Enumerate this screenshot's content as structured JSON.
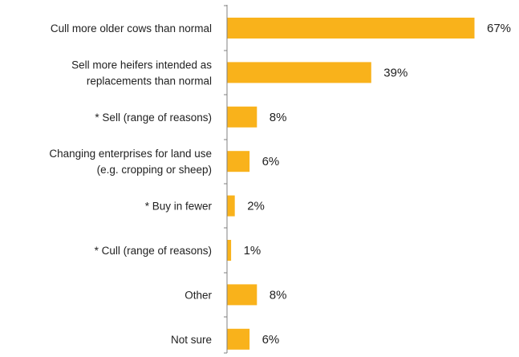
{
  "chart_data": {
    "type": "bar",
    "orientation": "horizontal",
    "categories": [
      [
        "Cull more older cows than normal"
      ],
      [
        "Sell more heifers intended as",
        "replacements than normal"
      ],
      [
        "* Sell (range of reasons)"
      ],
      [
        "Changing enterprises for land use",
        "(e.g. cropping or sheep)"
      ],
      [
        "* Buy in fewer"
      ],
      [
        "* Cull (range of reasons)"
      ],
      [
        "Other"
      ],
      [
        "Not sure"
      ]
    ],
    "values": [
      67,
      39,
      8,
      6,
      2,
      1,
      8,
      6
    ],
    "value_labels": [
      "67%",
      "39%",
      "8%",
      "6%",
      "2%",
      "1%",
      "8%",
      "6%"
    ],
    "xlim": [
      0,
      70
    ],
    "title": "",
    "xlabel": "",
    "ylabel": "",
    "grid": false,
    "legend": "none",
    "colors": {
      "bar": "#F9B21B",
      "axis": "#808080",
      "text": "#222222"
    }
  }
}
